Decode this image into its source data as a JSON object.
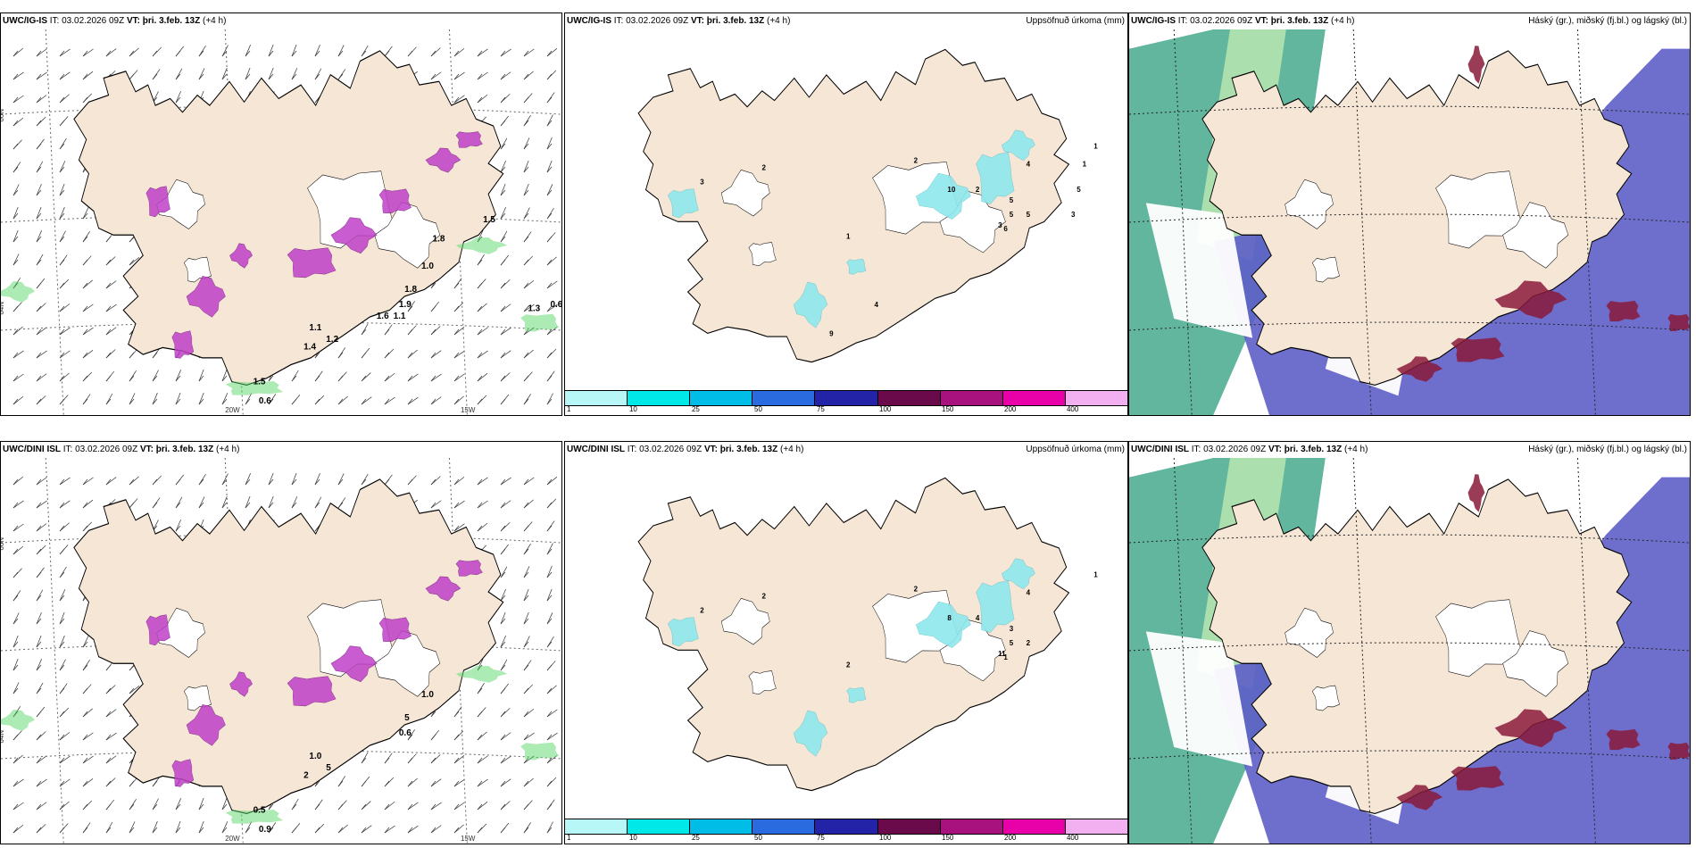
{
  "rows": [
    {
      "model": "UWC/IG-IS",
      "panels": [
        {
          "type": "wind",
          "model": "UWC/IG-IS",
          "it_label": "IT:",
          "it": "03.02.2026 09Z",
          "vt_label": "VT:",
          "vt": "þri. 3.feb. 13Z",
          "lead": "(+4 h)",
          "title": "",
          "values": [
            "1.5",
            "0.6",
            "1.4",
            "1.2",
            "1.1",
            "1.9",
            "1.8",
            "1.0",
            "1.1",
            "1.6",
            "1.8",
            "0.6",
            "1.5",
            "1.3"
          ],
          "lat_labels": [
            "66N",
            "64N"
          ],
          "lon_labels": [
            "20W",
            "15W"
          ]
        },
        {
          "type": "precip",
          "model": "UWC/IG-IS",
          "it_label": "IT:",
          "it": "03.02.2026 09Z",
          "vt_label": "VT:",
          "vt": "þri. 3.feb. 13Z",
          "lead": "(+4 h)",
          "title": "Uppsöfnuð úrkoma (mm)",
          "values": [
            "3",
            "2",
            "1",
            "2",
            "5",
            "4",
            "5",
            "5",
            "3",
            "6",
            "10",
            "2",
            "1",
            "1",
            "5",
            "3",
            "9",
            "4"
          ]
        },
        {
          "type": "cloud",
          "model": "UWC/IG-IS",
          "it_label": "IT:",
          "it": "03.02.2026 09Z",
          "vt_label": "VT:",
          "vt": "þri. 3.feb. 13Z",
          "lead": "(+4 h)",
          "title": "Háský (gr.), miðský (fj.bl.) og lágský (bl.)"
        }
      ]
    },
    {
      "model": "UWC/DINI ISL",
      "panels": [
        {
          "type": "wind",
          "model": "UWC/DINI ISL",
          "it_label": "IT:",
          "it": "03.02.2026 09Z",
          "vt_label": "VT:",
          "vt": "þri. 3.feb. 13Z",
          "lead": "(+4 h)",
          "title": "",
          "values": [
            "0.5",
            "0.9",
            "2",
            "5",
            "1.0",
            "0.6",
            "5",
            "1.0"
          ],
          "lat_labels": [
            "66N",
            "64N"
          ],
          "lon_labels": [
            "20W",
            "15W"
          ]
        },
        {
          "type": "precip",
          "model": "UWC/DINI ISL",
          "it_label": "IT:",
          "it": "03.02.2026 09Z",
          "vt_label": "VT:",
          "vt": "þri. 3.feb. 13Z",
          "lead": "(+4 h)",
          "title": "Uppsöfnuð úrkoma (mm)",
          "values": [
            "2",
            "2",
            "2",
            "2",
            "3",
            "4",
            "5",
            "2",
            "11",
            "1",
            "8",
            "4",
            "1"
          ]
        },
        {
          "type": "cloud",
          "model": "UWC/DINI ISL",
          "it_label": "IT:",
          "it": "03.02.2026 09Z",
          "vt_label": "VT:",
          "vt": "þri. 3.feb. 13Z",
          "lead": "(+4 h)",
          "title": "Háský (gr.), miðský (fj.bl.) og lágský (bl.)"
        }
      ]
    }
  ],
  "precip_legend": {
    "colors": [
      "#b8f7f7",
      "#00e8e8",
      "#00bde8",
      "#2b6be0",
      "#2323a8",
      "#6a0a4a",
      "#a8127e",
      "#e800a8",
      "#f2b0f0"
    ],
    "ticks": [
      "1",
      "10",
      "25",
      "50",
      "75",
      "100",
      "150",
      "200",
      "400"
    ]
  },
  "colors": {
    "land": "#f5e6d6",
    "coast": "#000000",
    "cyan_precip": "#8ee8ee",
    "magenta_precip": "#c040c8",
    "green_precip": "#5ad86a",
    "cloud_high": "#2e9e7e",
    "cloud_mid": "#5e5ec8",
    "cloud_low": "#8a1a3a"
  }
}
